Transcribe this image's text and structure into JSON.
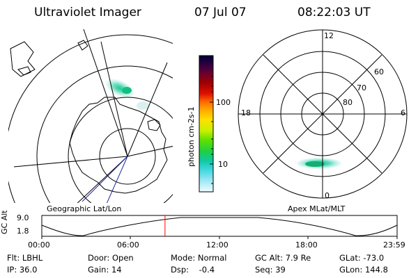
{
  "header": {
    "title": "Ultraviolet Imager",
    "date": "07 Jul 07",
    "time": "08:22:03 UT"
  },
  "colorbar": {
    "unit_label": "photon cm-2s-1",
    "ticks": [
      "100",
      "10"
    ],
    "colors": [
      "#000033",
      "#1a0033",
      "#4b0040",
      "#7a0020",
      "#a00000",
      "#d40000",
      "#ff2a00",
      "#ff7700",
      "#ffaa00",
      "#ffd200",
      "#eef000",
      "#b8f000",
      "#6ae000",
      "#20d020",
      "#10c870",
      "#10c8c0",
      "#40d0e0",
      "#80e0f0",
      "#c0f0f8",
      "#e8fbff"
    ]
  },
  "left_map": {
    "title": "Geographic Lat/Lon",
    "aurora_color": "#2fd0a0"
  },
  "right_map": {
    "title": "Apex MLat/MLT",
    "mlt_labels": {
      "top": "12",
      "left": "18",
      "right": "6",
      "bottom": "0"
    },
    "lat_labels": [
      "60",
      "70",
      "80"
    ]
  },
  "altitude_plot": {
    "y_label": "GC Alt",
    "y_ticks": [
      "9.0",
      "1.8"
    ],
    "x_ticks": [
      "00:00",
      "06:00",
      "12:00",
      "18:00",
      "23:59"
    ],
    "marker_time_fraction": 0.3468,
    "marker_color": "#ff0000"
  },
  "info": {
    "row1": [
      {
        "key": "flt",
        "text": "Flt: LBHL"
      },
      {
        "key": "door",
        "text": "Door: Open"
      },
      {
        "key": "mode",
        "text": "Mode: Normal"
      },
      {
        "key": "gcalt",
        "text": "GC Alt: 7.9 Re"
      },
      {
        "key": "glat",
        "text": "GLat: -73.0"
      }
    ],
    "row2": [
      {
        "key": "ip",
        "text": "IP: 36.0"
      },
      {
        "key": "gain",
        "text": "Gain: 14"
      },
      {
        "key": "dsp",
        "text": "Dsp:    -0.4"
      },
      {
        "key": "seq",
        "text": "Seq: 39"
      },
      {
        "key": "glon",
        "text": "GLon: 144.8"
      }
    ]
  }
}
